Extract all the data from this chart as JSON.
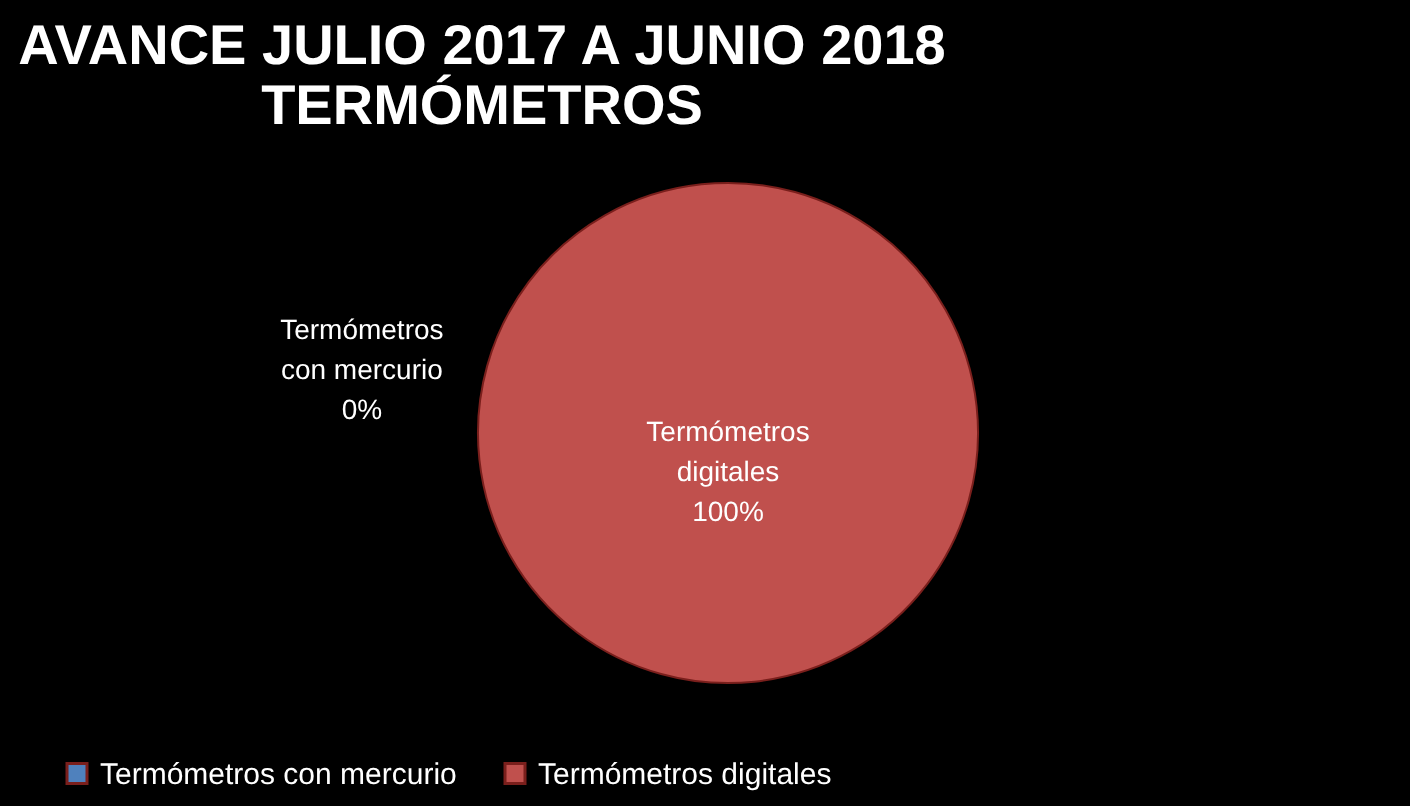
{
  "chart_data": {
    "type": "pie",
    "title": "AVANCE JULIO 2017 A JUNIO 2018\nTERMÓMETROS",
    "categories": [
      "Termómetros con mercurio",
      "Termómetros digitales"
    ],
    "values": [
      0,
      100
    ],
    "colors": [
      "#4f81bd",
      "#c0504d"
    ],
    "value_labels": [
      "0%",
      "100%"
    ],
    "legend": "bottom"
  }
}
